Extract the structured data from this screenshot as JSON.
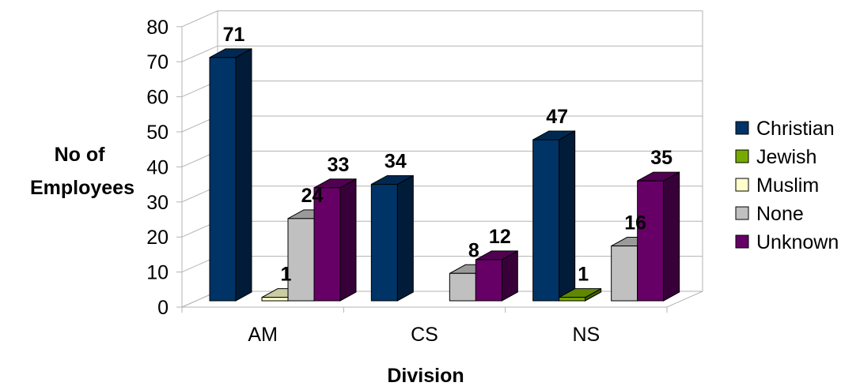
{
  "chart_data": {
    "type": "bar",
    "title": "",
    "xlabel": "Division",
    "ylabel_lines": [
      "No of",
      "Employees"
    ],
    "categories": [
      "AM",
      "CS",
      "NS"
    ],
    "ylim": [
      0,
      80
    ],
    "yticks": [
      "0",
      "10",
      "20",
      "30",
      "40",
      "50",
      "60",
      "70",
      "80"
    ],
    "grid": true,
    "legend_position": "right",
    "series": [
      {
        "name": "Christian",
        "color": "#003366",
        "values": [
          71,
          34,
          47
        ]
      },
      {
        "name": "Jewish",
        "color": "#77aa00",
        "values": [
          0,
          0,
          1
        ]
      },
      {
        "name": "Muslim",
        "color": "#ffffcc",
        "values": [
          1,
          0,
          0
        ]
      },
      {
        "name": "None",
        "color": "#c0c0c0",
        "values": [
          24,
          8,
          16
        ]
      },
      {
        "name": "Unknown",
        "color": "#660066",
        "values": [
          33,
          12,
          35
        ]
      }
    ]
  }
}
